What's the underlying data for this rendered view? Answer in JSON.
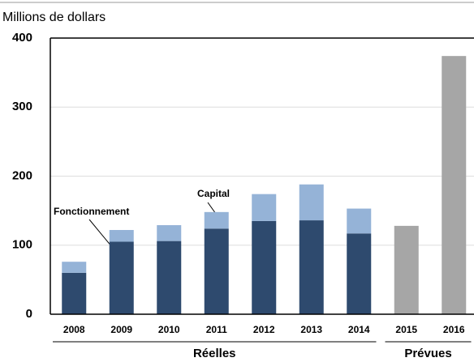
{
  "chart_data": {
    "type": "stacked_bar",
    "ylabel": "Millions de dollars",
    "categories": [
      "2008",
      "2009",
      "2010",
      "2011",
      "2012",
      "2013",
      "2014",
      "2015",
      "2016"
    ],
    "series": [
      {
        "name": "Fonctionnement",
        "color": "#2e4a6e",
        "values": [
          60,
          105,
          106,
          124,
          135,
          136,
          117,
          null,
          null
        ]
      },
      {
        "name": "Capital",
        "color": "#95b3d7",
        "values": [
          16,
          17,
          23,
          24,
          39,
          52,
          36,
          null,
          null
        ]
      },
      {
        "color": "#a6a6a6",
        "values": [
          null,
          null,
          null,
          null,
          null,
          null,
          null,
          128,
          374
        ]
      }
    ],
    "x_groups": [
      {
        "label": "Réelles",
        "count": 7
      },
      {
        "label": "Prévues",
        "count": 2
      }
    ],
    "ylim": [
      0,
      400
    ],
    "yticks": [
      0,
      100,
      200,
      300,
      400
    ],
    "grid": true
  }
}
